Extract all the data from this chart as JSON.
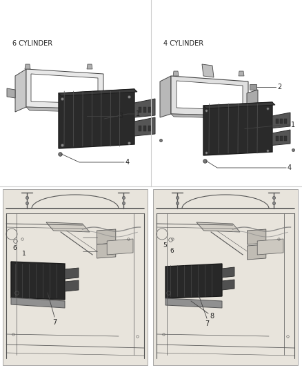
{
  "background_color": "#ffffff",
  "label_6cyl": "6 CYLINDER",
  "label_4cyl": "4 CYLINDER",
  "text_color": "#222222",
  "line_color": "#444444",
  "thin_line": "#666666",
  "divider_color": "#cccccc",
  "part_gray": "#d0d0d0",
  "part_dark": "#404040",
  "part_mid": "#888888",
  "part_light": "#e8e8e8",
  "engine_bg": "#e8e4dc",
  "engine_line": "#555555"
}
